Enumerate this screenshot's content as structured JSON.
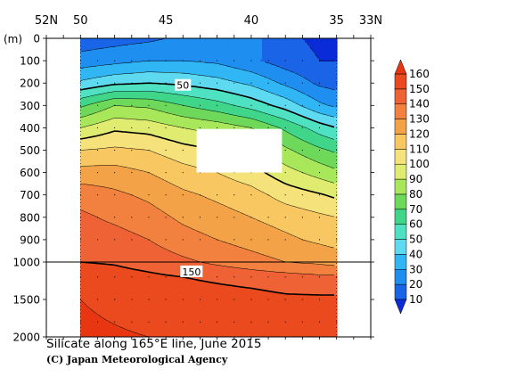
{
  "chart_data": {
    "type": "heatmap",
    "title": "Silicate along 165°E line, June 2015",
    "credit": "(C) Japan Meteorological Agency",
    "ylabel": "(m)",
    "x_ticks": [
      {
        "lat": 52,
        "label": "52N"
      },
      {
        "lat": 50,
        "label": "50"
      },
      {
        "lat": 45,
        "label": "45"
      },
      {
        "lat": 40,
        "label": "40"
      },
      {
        "lat": 35,
        "label": "35"
      },
      {
        "lat": 33,
        "label": "33N"
      }
    ],
    "xlim": [
      52,
      33
    ],
    "y_ticks_upper": [
      {
        "depth": 0,
        "label": "0"
      },
      {
        "depth": 100,
        "label": "100"
      },
      {
        "depth": 200,
        "label": "200"
      },
      {
        "depth": 300,
        "label": "300"
      },
      {
        "depth": 400,
        "label": "400"
      },
      {
        "depth": 500,
        "label": "500"
      },
      {
        "depth": 600,
        "label": "600"
      },
      {
        "depth": 700,
        "label": "700"
      },
      {
        "depth": 800,
        "label": "800"
      },
      {
        "depth": 900,
        "label": "900"
      },
      {
        "depth": 1000,
        "label": "1000"
      }
    ],
    "y_ticks_lower": [
      {
        "depth": 1000,
        "label": "1000"
      },
      {
        "depth": 1500,
        "label": "1500"
      },
      {
        "depth": 2000,
        "label": "2000"
      }
    ],
    "depth_break": 1000,
    "ylim": [
      0,
      2000
    ],
    "data_lat_range": [
      50,
      35
    ],
    "contour_interval": 10,
    "bold_contours": [
      50,
      100,
      150
    ],
    "contour_labels": [
      {
        "value": 50,
        "lat": 44.0,
        "depth": 210,
        "text": "50"
      },
      {
        "value": 150,
        "lat": 43.5,
        "depth": 1130,
        "text": "150"
      }
    ],
    "missing_data_box": {
      "lat_from": 43.2,
      "lat_to": 38.2,
      "depth_from": 405,
      "depth_to": 600
    },
    "stations_lat": [
      50,
      49,
      48,
      47,
      46,
      45,
      44,
      43,
      42,
      41,
      40,
      39,
      38,
      37,
      36,
      35
    ],
    "sample_depths": [
      0,
      100,
      200,
      300,
      400,
      500,
      600,
      700,
      800,
      900,
      1000,
      1200,
      1500,
      1800
    ],
    "section_lats": [
      50,
      48,
      46,
      44,
      42,
      40,
      38,
      36,
      35
    ],
    "section_values": [
      {
        "depth": 0,
        "values": [
          14,
          16,
          18,
          22,
          25,
          24,
          12,
          8,
          8
        ]
      },
      {
        "depth": 100,
        "values": [
          24,
          27,
          30,
          30,
          28,
          22,
          15,
          10,
          10
        ]
      },
      {
        "depth": 200,
        "values": [
          42,
          48,
          50,
          48,
          44,
          38,
          28,
          18,
          16
        ]
      },
      {
        "depth": 300,
        "values": [
          68,
          80,
          78,
          70,
          64,
          56,
          46,
          32,
          28
        ]
      },
      {
        "depth": 400,
        "values": [
          90,
          98,
          96,
          90,
          86,
          80,
          68,
          55,
          50
        ]
      },
      {
        "depth": 500,
        "values": [
          110,
          112,
          110,
          104,
          100,
          96,
          82,
          72,
          68
        ]
      },
      {
        "depth": 600,
        "values": [
          124,
          124,
          120,
          114,
          110,
          104,
          94,
          86,
          82
        ]
      },
      {
        "depth": 700,
        "values": [
          136,
          132,
          128,
          122,
          118,
          114,
          106,
          101,
          98
        ]
      },
      {
        "depth": 800,
        "values": [
          142,
          138,
          134,
          128,
          124,
          120,
          116,
          112,
          110
        ]
      },
      {
        "depth": 900,
        "values": [
          146,
          144,
          140,
          134,
          130,
          126,
          122,
          118,
          116
        ]
      },
      {
        "depth": 1000,
        "values": [
          150,
          149,
          146,
          142,
          138,
          134,
          130,
          128,
          126
        ]
      },
      {
        "depth": 1200,
        "values": [
          156,
          154,
          152,
          150,
          148,
          146,
          144,
          142,
          142
        ]
      },
      {
        "depth": 1500,
        "values": [
          160,
          158,
          156,
          156,
          155,
          154,
          152,
          152,
          152
        ]
      },
      {
        "depth": 2000,
        "values": [
          162,
          161,
          160,
          160,
          159,
          158,
          158,
          157,
          157
        ]
      }
    ],
    "colorbar": {
      "levels": [
        10,
        20,
        30,
        40,
        50,
        60,
        70,
        80,
        90,
        100,
        110,
        120,
        130,
        140,
        150,
        160
      ],
      "labels": [
        "10",
        "20",
        "30",
        "40",
        "50",
        "60",
        "70",
        "80",
        "90",
        "100",
        "110",
        "120",
        "130",
        "140",
        "150",
        "160"
      ],
      "colors": [
        "#0a2bd8",
        "#1a64e8",
        "#1e8ef0",
        "#30b6f4",
        "#5dd9f0",
        "#4fe2c2",
        "#3fd68a",
        "#6ed85a",
        "#a8e65a",
        "#e0ec70",
        "#f6e27a",
        "#f8c762",
        "#f4a248",
        "#f2803e",
        "#ee6236",
        "#ea4a1e",
        "#e83612"
      ]
    }
  }
}
